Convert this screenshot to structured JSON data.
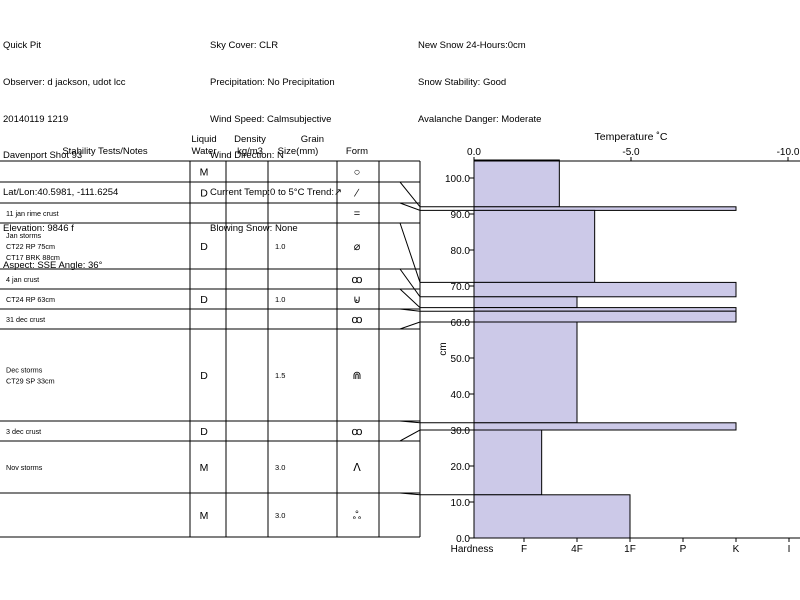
{
  "header": {
    "col1": [
      "Quick Pit",
      "Observer: d jackson, udot lcc",
      "20140119 1219",
      "Davenport Shot 93",
      "Lat/Lon:40.5981, -111.6254",
      "Elevation: 9846 f",
      "Aspect: SSE Angle: 36°"
    ],
    "col2": [
      "Sky Cover: CLR",
      "Precipitation: No Precipitation",
      "Wind Speed: Calmsubjective",
      "Wind Direction: N",
      "Current Temp:0 to 5°C Trend:↗",
      "Blowing Snow: None"
    ],
    "col3": [
      "New Snow 24-Hours:0cm",
      "Snow Stability: Good",
      "Avalanche Danger: Moderate"
    ]
  },
  "table": {
    "headers": {
      "notes": "Stability Tests/Notes",
      "liquid_1": "Liquid",
      "liquid_2": "Water",
      "density_1": "Density",
      "density_2": "kg/m3",
      "grain_1": "Grain",
      "grain_2": "Size(mm)",
      "form": "Form"
    }
  },
  "chart_data": {
    "type": "bar",
    "title": "Temperature ˚C",
    "ylabel": "cm",
    "ylim": [
      0,
      105
    ],
    "y_ticks": [
      "0.0",
      "10.0",
      "20.0",
      "30.0",
      "40.0",
      "50.0",
      "60.0",
      "70.0",
      "80.0",
      "90.0",
      "100.0"
    ],
    "top_ticks": [
      "0.0",
      "-5.0",
      "-10.0"
    ],
    "hardness_label": "Hardness",
    "hardness_ticks": [
      "F",
      "4F",
      "1F",
      "P",
      "K",
      "I"
    ],
    "layers": [
      {
        "top": 105,
        "bottom": 92,
        "hardness": "4F-",
        "notes": [],
        "liquid": "M",
        "density": "",
        "grain": "",
        "form": "○"
      },
      {
        "top": 92,
        "bottom": 91,
        "hardness": "K",
        "notes": [],
        "liquid": "D",
        "density": "",
        "grain": "",
        "form": "∕"
      },
      {
        "top": 91,
        "bottom": 71,
        "hardness": "4F+",
        "notes": [
          "11 jan rime crust"
        ],
        "liquid": "",
        "density": "",
        "grain": "",
        "form": "="
      },
      {
        "top": 71,
        "bottom": 67,
        "hardness": "K",
        "notes": [
          "Jan storms",
          "CT22 RP 75cm",
          "CT17 BRK 88cm"
        ],
        "liquid": "D",
        "density": "",
        "grain": "1.0",
        "form": "⌀"
      },
      {
        "top": 67,
        "bottom": 64,
        "hardness": "4F",
        "notes": [
          "4 jan crust"
        ],
        "liquid": "",
        "density": "",
        "grain": "",
        "form": "ꝏ"
      },
      {
        "top": 64,
        "bottom": 63,
        "hardness": "K",
        "notes": [
          "CT24 RP 63cm"
        ],
        "liquid": "D",
        "density": "",
        "grain": "1.0",
        "form": "⊌"
      },
      {
        "top": 63,
        "bottom": 60,
        "hardness": "K",
        "notes": [
          "31 dec crust"
        ],
        "liquid": "",
        "density": "",
        "grain": "",
        "form": "ꝏ"
      },
      {
        "top": 60,
        "bottom": 32,
        "hardness": "4F",
        "notes": [
          "Dec storms",
          "CT29 SP 33cm"
        ],
        "liquid": "D",
        "density": "",
        "grain": "1.5",
        "form": "⋒"
      },
      {
        "top": 32,
        "bottom": 30,
        "hardness": "K",
        "notes": [
          "3 dec crust"
        ],
        "liquid": "D",
        "density": "",
        "grain": "",
        "form": "ꝏ"
      },
      {
        "top": 30,
        "bottom": 12,
        "hardness": "F+",
        "notes": [
          "Nov storms"
        ],
        "liquid": "M",
        "density": "",
        "grain": "3.0",
        "form": "ᐱ"
      },
      {
        "top": 12,
        "bottom": 0,
        "hardness": "1F",
        "notes": [],
        "liquid": "M",
        "density": "",
        "grain": "3.0",
        "form": "ஃ"
      }
    ]
  }
}
